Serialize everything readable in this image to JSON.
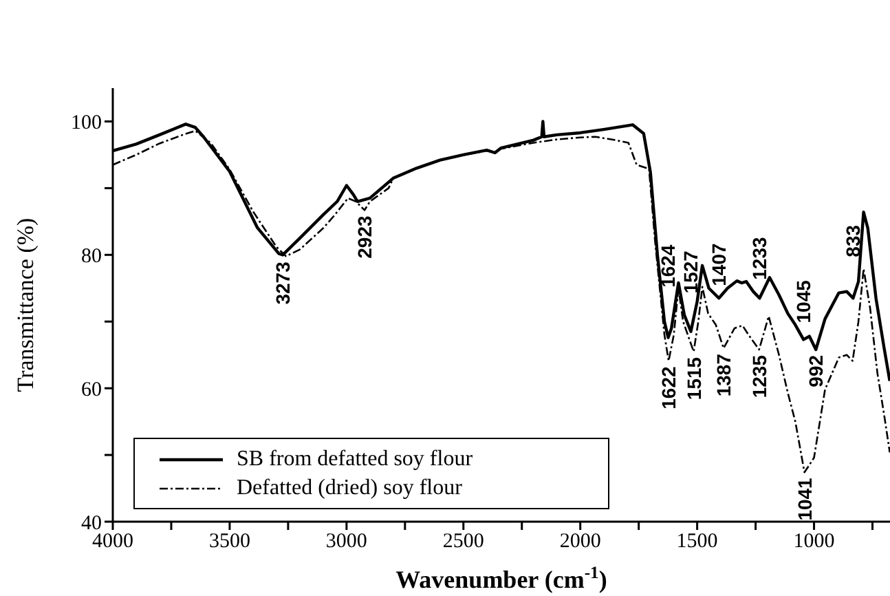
{
  "chart_data": {
    "type": "line",
    "xlabel": "Wavenumber (cm$^{-1}$)",
    "ylabel": "Transmittance (%)",
    "xlim": [
      4000,
      675
    ],
    "xticks": [
      4000,
      {
        "value": 3750,
        "label": null
      },
      3500,
      {
        "value": 3250,
        "label": null
      },
      3000,
      {
        "value": 2750,
        "label": null
      },
      2500,
      {
        "value": 2250,
        "label": null
      },
      2000,
      {
        "value": 1750,
        "label": null
      },
      1500,
      {
        "value": 1250,
        "label": null
      },
      1000,
      {
        "value": 750,
        "label": null
      }
    ],
    "ylim": [
      40,
      105
    ],
    "yticks": [
      40,
      {
        "value": 50,
        "label": null
      },
      60,
      {
        "value": 70,
        "label": null
      },
      80,
      {
        "value": 90,
        "label": null
      },
      100
    ],
    "grid": false,
    "legend": "bottom left",
    "marker": "none",
    "series": [
      {
        "name": "SB from defatted soy flour",
        "color": "#000000",
        "line_style": "solid",
        "x": [
          4000,
          3900,
          3800,
          3688,
          3647,
          3612,
          3500,
          3382,
          3290,
          3273,
          3200,
          3100,
          3040,
          3000,
          2970,
          2953,
          2900,
          2850,
          2800,
          2700,
          2600,
          2500,
          2400,
          2365,
          2340,
          2200,
          2165,
          2160,
          2155,
          2100,
          2000,
          1900,
          1776,
          1729,
          1700,
          1670,
          1640,
          1624,
          1610,
          1580,
          1555,
          1527,
          1500,
          1478,
          1450,
          1407,
          1370,
          1330,
          1310,
          1290,
          1260,
          1233,
          1190,
          1150,
          1112,
          1080,
          1045,
          1020,
          992,
          953,
          894,
          860,
          833,
          810,
          788,
          770,
          735,
          700,
          676
        ],
        "values": [
          95.6,
          96.6,
          98,
          99.6,
          99.1,
          97.7,
          92.5,
          84.1,
          80.2,
          80,
          82.5,
          86,
          88,
          90.4,
          89,
          88,
          88.5,
          90,
          91.5,
          93,
          94.2,
          95,
          95.7,
          95.3,
          96,
          97.2,
          97.7,
          100,
          97.7,
          98,
          98.3,
          98.8,
          99.5,
          98.2,
          92.4,
          80,
          70,
          67.6,
          69,
          75.8,
          71,
          68.5,
          73,
          78.4,
          75,
          73.5,
          75,
          76.1,
          75.8,
          76,
          74.5,
          73.5,
          76.6,
          74,
          71.2,
          69.5,
          67.3,
          67.8,
          65.8,
          70.4,
          74.3,
          74.5,
          73.5,
          76,
          86.4,
          84,
          73.5,
          66,
          61.1
        ]
      },
      {
        "name": "Defatted (dried) soy flour",
        "color": "#000000",
        "line_style": "dashed",
        "x": [
          4000,
          3900,
          3800,
          3700,
          3647,
          3582,
          3500,
          3400,
          3300,
          3259,
          3200,
          3100,
          3050,
          2994,
          2960,
          2923,
          2900,
          2880,
          2820,
          2800,
          2700,
          2600,
          2500,
          2400,
          2365,
          2340,
          2200,
          2100,
          2000,
          1935,
          1850,
          1794,
          1759,
          1706,
          1680,
          1640,
          1622,
          1600,
          1580,
          1560,
          1515,
          1495,
          1478,
          1453,
          1420,
          1387,
          1340,
          1306,
          1280,
          1235,
          1194,
          1150,
          1112,
          1080,
          1041,
          1020,
          1000,
          975,
          953,
          894,
          860,
          835,
          810,
          788,
          760,
          729,
          700,
          676
        ],
        "values": [
          93.5,
          95,
          96.7,
          98,
          98.6,
          96.8,
          92.8,
          86.5,
          81.2,
          79.8,
          80.8,
          84,
          86,
          88.5,
          88,
          86.7,
          88,
          88.5,
          90,
          91.5,
          93,
          94.2,
          95,
          95.6,
          95.3,
          95.9,
          96.8,
          97.3,
          97.6,
          97.7,
          97.2,
          96.8,
          93.5,
          92.9,
          82,
          68,
          64.1,
          68,
          75,
          70,
          65.5,
          70,
          75.2,
          71.2,
          69.5,
          66,
          69,
          69.4,
          68,
          65.8,
          70.8,
          65,
          59.3,
          55,
          47.4,
          48.5,
          49.6,
          55,
          59.8,
          64.6,
          65,
          64.1,
          70,
          77.9,
          72,
          62.3,
          56,
          50.4
        ]
      }
    ],
    "annotations": [
      {
        "text": "3273",
        "x": 3273,
        "y": 80
      },
      {
        "text": "2923",
        "x": 2923,
        "y": 86.7
      },
      {
        "text": "1624",
        "x": 1624,
        "y": 67.6
      },
      {
        "text": "1622",
        "x": 1622,
        "y": 64.1
      },
      {
        "text": "1527",
        "x": 1527,
        "y": 68.5
      },
      {
        "text": "1515",
        "x": 1515,
        "y": 65.5
      },
      {
        "text": "1407",
        "x": 1407,
        "y": 73.5
      },
      {
        "text": "1387",
        "x": 1387,
        "y": 66
      },
      {
        "text": "1233",
        "x": 1233,
        "y": 73.5
      },
      {
        "text": "1235",
        "x": 1235,
        "y": 65.8
      },
      {
        "text": "1045",
        "x": 1045,
        "y": 67.3
      },
      {
        "text": "1041",
        "x": 1041,
        "y": 47.4
      },
      {
        "text": "992",
        "x": 992,
        "y": 65.8
      },
      {
        "text": "833",
        "x": 833,
        "y": 73.5
      }
    ]
  }
}
